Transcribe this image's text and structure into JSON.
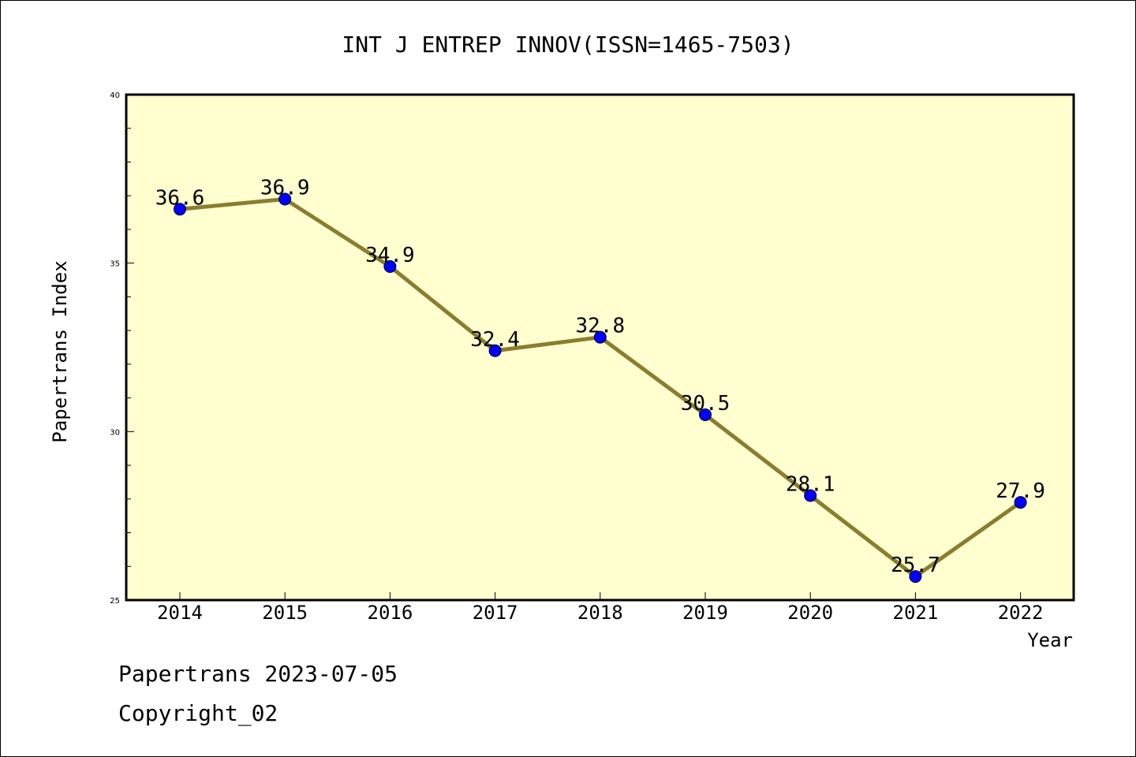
{
  "chart_data": {
    "type": "line",
    "title": "INT J ENTREP INNOV(ISSN=1465-7503)",
    "xlabel": "Year",
    "ylabel": "Papertrans Index",
    "categories": [
      "2014",
      "2015",
      "2016",
      "2017",
      "2018",
      "2019",
      "2020",
      "2021",
      "2022"
    ],
    "series": [
      {
        "values": [
          36.6,
          36.9,
          34.9,
          32.4,
          32.8,
          30.5,
          28.1,
          25.7,
          27.9
        ]
      }
    ],
    "data_labels": [
      "36.6",
      "36.9",
      "34.9",
      "32.4",
      "32.8",
      "30.5",
      "28.1",
      "25.7",
      "27.9"
    ],
    "ylim": [
      25,
      40
    ],
    "yticks": [
      "40",
      "35",
      "30",
      "25"
    ],
    "grid": false,
    "colors": {
      "plot_background": "#ffffd0",
      "line": "#8b7d2e",
      "marker": "#0000ff"
    }
  },
  "footer": {
    "line1": "Papertrans 2023-07-05",
    "line2": "Copyright_02"
  }
}
